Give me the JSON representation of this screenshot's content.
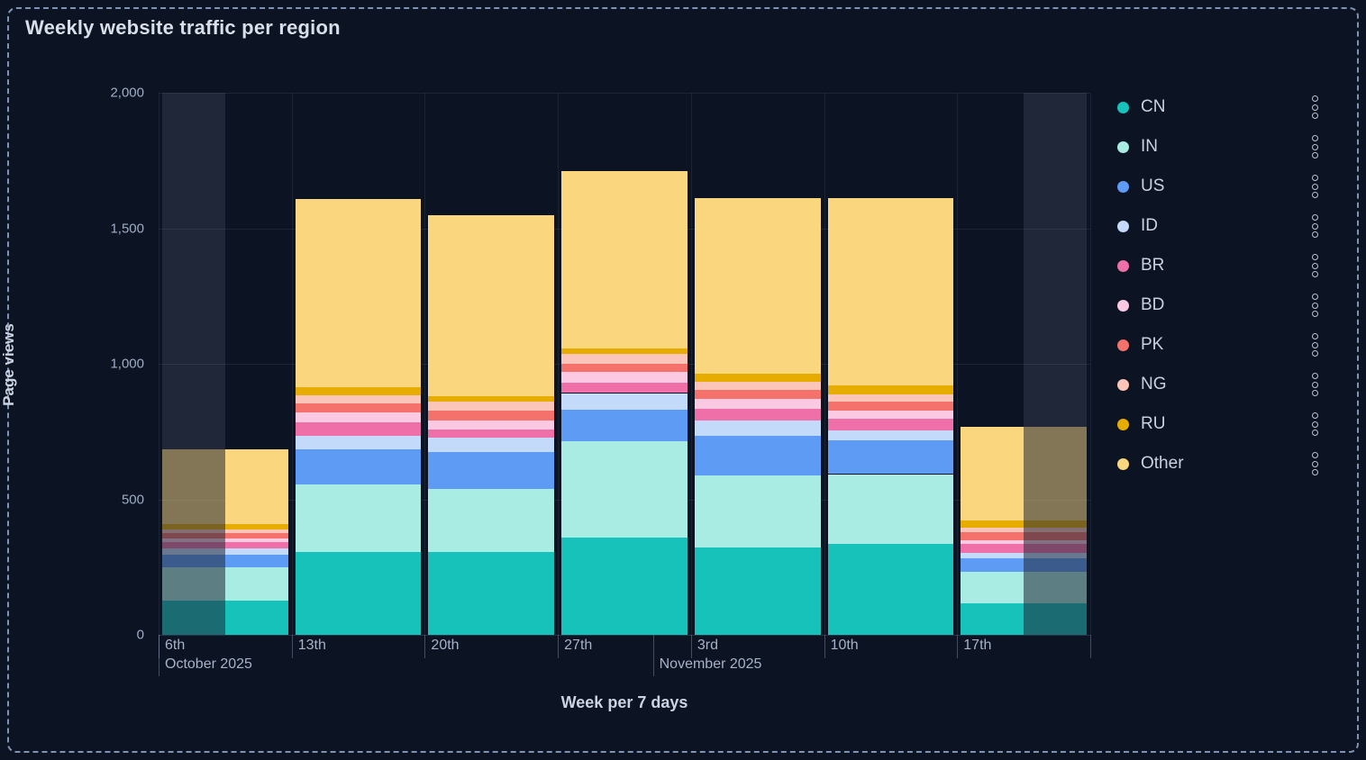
{
  "panel": {
    "title": "Weekly website traffic per region"
  },
  "icons": {
    "legend_item_menu": "kebab-dots-icon"
  },
  "colors": {
    "background": "#0C1322",
    "panel_border": "#7E93B5",
    "grid": "rgba(140,160,195,0.13)",
    "axis_text": "#9FADC7"
  },
  "chart_data": {
    "type": "bar",
    "stacked": true,
    "title": "Weekly website traffic per region",
    "xlabel": "Week per 7 days",
    "ylabel": "Page views",
    "ylim": [
      0,
      2000
    ],
    "y_ticks": [
      0,
      500,
      1000,
      1500,
      2000
    ],
    "y_tick_labels": [
      "0",
      "500",
      "1,000",
      "1,500",
      "2,000"
    ],
    "categories": [
      "6th",
      "13th",
      "20th",
      "27th",
      "3rd",
      "10th",
      "17th"
    ],
    "months": [
      {
        "label": "October 2025",
        "at_slot": 0
      },
      {
        "label": "November 2025",
        "at_slot": 3.714
      }
    ],
    "legend_position": "right",
    "grid": true,
    "series": [
      {
        "name": "CN",
        "color": "#16C2BA",
        "values": [
          127,
          305,
          305,
          360,
          323,
          336,
          115
        ]
      },
      {
        "name": "IN",
        "color": "#A9ECE3",
        "values": [
          122,
          250,
          232,
          353,
          266,
          257,
          116
        ]
      },
      {
        "name": "US",
        "color": "#5D9BF5",
        "values": [
          48,
          131,
          138,
          116,
          145,
          124,
          50
        ]
      },
      {
        "name": "ID",
        "color": "#C4DAFA",
        "values": [
          22,
          48,
          52,
          63,
          58,
          37,
          22
        ]
      },
      {
        "name": "BR",
        "color": "#EF70A8",
        "values": [
          22,
          50,
          31,
          37,
          42,
          44,
          31
        ]
      },
      {
        "name": "BD",
        "color": "#FBC9E1",
        "values": [
          13,
          37,
          33,
          40,
          35,
          28,
          16
        ]
      },
      {
        "name": "PK",
        "color": "#F4716C",
        "values": [
          20,
          33,
          35,
          32,
          33,
          33,
          29
        ]
      },
      {
        "name": "NG",
        "color": "#FCC5B9",
        "values": [
          15,
          30,
          34,
          37,
          33,
          28,
          17
        ]
      },
      {
        "name": "RU",
        "color": "#E6AC00",
        "values": [
          20,
          28,
          21,
          20,
          28,
          33,
          25
        ]
      },
      {
        "name": "Other",
        "color": "#FAD77E",
        "values": [
          277,
          695,
          667,
          652,
          647,
          692,
          345
        ]
      }
    ],
    "bar_totals": [
      686,
      1607,
      1548,
      1710,
      1610,
      1612,
      766
    ],
    "dimmed_regions": [
      {
        "category_index": 0,
        "half": "left"
      },
      {
        "category_index": 6,
        "half": "right"
      }
    ]
  }
}
